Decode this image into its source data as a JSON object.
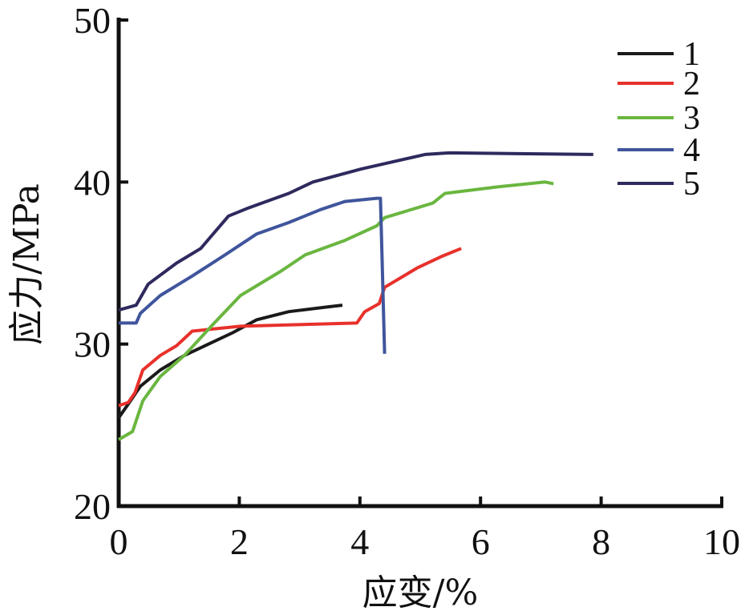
{
  "chart_data": {
    "type": "line",
    "title": "",
    "xlabel": "应变/%",
    "ylabel": "应力/MPa",
    "xlim": [
      0,
      10
    ],
    "ylim": [
      20,
      50
    ],
    "xticks": [
      0,
      2,
      4,
      6,
      8,
      10
    ],
    "yticks": [
      20,
      30,
      40,
      50
    ],
    "grid": false,
    "legend_position": "top-right",
    "series": [
      {
        "name": "1",
        "color": "#1a1a1a",
        "points": [
          [
            0,
            25.45
          ],
          [
            0.16,
            26.3
          ],
          [
            0.36,
            27.4
          ],
          [
            0.69,
            28.4
          ],
          [
            1.09,
            29.3
          ],
          [
            1.49,
            30.0
          ],
          [
            1.89,
            30.7
          ],
          [
            2.29,
            31.5
          ],
          [
            2.82,
            32.0
          ],
          [
            3.48,
            32.3
          ],
          [
            3.71,
            32.4
          ]
        ]
      },
      {
        "name": "2",
        "color": "#e8312b",
        "points": [
          [
            0,
            26.2
          ],
          [
            0.16,
            26.4
          ],
          [
            0.27,
            27.0
          ],
          [
            0.4,
            28.4
          ],
          [
            0.69,
            29.3
          ],
          [
            0.96,
            29.9
          ],
          [
            1.22,
            30.8
          ],
          [
            2.02,
            31.1
          ],
          [
            3.95,
            31.3
          ],
          [
            4.08,
            32.0
          ],
          [
            4.32,
            32.5
          ],
          [
            4.41,
            33.5
          ],
          [
            4.95,
            34.7
          ],
          [
            5.35,
            35.4
          ],
          [
            5.68,
            35.9
          ]
        ]
      },
      {
        "name": "3",
        "color": "#6ab640",
        "points": [
          [
            0,
            24.1
          ],
          [
            0.23,
            24.6
          ],
          [
            0.4,
            26.5
          ],
          [
            0.69,
            28.0
          ],
          [
            1.09,
            29.3
          ],
          [
            1.56,
            31.2
          ],
          [
            2.02,
            33.0
          ],
          [
            2.69,
            34.5
          ],
          [
            3.09,
            35.5
          ],
          [
            3.75,
            36.4
          ],
          [
            4.28,
            37.3
          ],
          [
            4.41,
            37.8
          ],
          [
            5.21,
            38.7
          ],
          [
            5.41,
            39.3
          ],
          [
            6.28,
            39.7
          ],
          [
            7.07,
            40.0
          ],
          [
            7.21,
            39.9
          ]
        ]
      },
      {
        "name": "4",
        "color": "#3f559c",
        "points": [
          [
            0,
            31.3
          ],
          [
            0.29,
            31.3
          ],
          [
            0.36,
            31.9
          ],
          [
            0.69,
            33.0
          ],
          [
            1.22,
            34.2
          ],
          [
            1.76,
            35.5
          ],
          [
            2.29,
            36.8
          ],
          [
            2.82,
            37.5
          ],
          [
            3.35,
            38.3
          ],
          [
            3.75,
            38.8
          ],
          [
            4.28,
            39.0
          ],
          [
            4.34,
            39.0
          ],
          [
            4.37,
            35.0
          ],
          [
            4.41,
            29.4
          ]
        ]
      },
      {
        "name": "5",
        "color": "#2e2a5e",
        "points": [
          [
            0,
            32.1
          ],
          [
            0.29,
            32.4
          ],
          [
            0.49,
            33.7
          ],
          [
            0.96,
            35.0
          ],
          [
            1.36,
            35.9
          ],
          [
            1.82,
            37.9
          ],
          [
            2.15,
            38.4
          ],
          [
            2.82,
            39.3
          ],
          [
            3.22,
            40.0
          ],
          [
            4.02,
            40.8
          ],
          [
            5.08,
            41.7
          ],
          [
            5.48,
            41.8
          ],
          [
            7.87,
            41.7
          ]
        ]
      }
    ]
  }
}
